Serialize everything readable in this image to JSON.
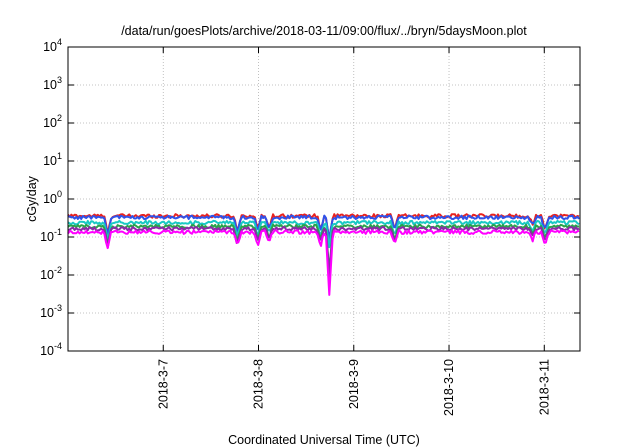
{
  "chart_data": {
    "type": "line",
    "title": "/data/run/goesPlots/archive/2018-03-11/09:00/flux/../bryn/5daysMoon.plot",
    "xlabel": "Coordinated Universal Time (UTC)",
    "ylabel": "cGy/day",
    "yscale": "log",
    "xlim": [
      "2018-03-06T00:00",
      "2018-03-11T09:00"
    ],
    "ylim": [
      0.0001,
      10000
    ],
    "grid": true,
    "x_ticks": [
      {
        "date": "2018-03-07T00:00",
        "label": "2018-3-7"
      },
      {
        "date": "2018-03-08T00:00",
        "label": "2018-3-8"
      },
      {
        "date": "2018-03-09T00:00",
        "label": "2018-3-9"
      },
      {
        "date": "2018-03-10T00:00",
        "label": "2018-3-10"
      },
      {
        "date": "2018-03-11T00:00",
        "label": "2018-3-11"
      }
    ],
    "y_ticks": [
      {
        "value": 0.0001,
        "base": "10",
        "exp": "-4"
      },
      {
        "value": 0.001,
        "base": "10",
        "exp": "-3"
      },
      {
        "value": 0.01,
        "base": "10",
        "exp": "-2"
      },
      {
        "value": 0.1,
        "base": "10",
        "exp": "-1"
      },
      {
        "value": 1,
        "base": "10",
        "exp": "0"
      },
      {
        "value": 10,
        "base": "10",
        "exp": "1"
      },
      {
        "value": 100,
        "base": "10",
        "exp": "2"
      },
      {
        "value": 1000,
        "base": "10",
        "exp": "3"
      },
      {
        "value": 10000,
        "base": "10",
        "exp": "4"
      }
    ],
    "series": [
      {
        "color": "#e8221f",
        "baseline": 0.36
      },
      {
        "color": "#2f52ea",
        "baseline": 0.33
      },
      {
        "color": "#19c9c4",
        "baseline": 0.24
      },
      {
        "color": "#2aa34a",
        "baseline": 0.19
      },
      {
        "color": "#8a2aa8",
        "baseline": 0.165
      },
      {
        "color": "#ff00ff",
        "baseline": 0.135
      }
    ],
    "dips": [
      {
        "date": "2018-03-06T10:00",
        "depth": 0.35
      },
      {
        "date": "2018-03-07T18:40",
        "depth": 0.4
      },
      {
        "date": "2018-03-07T23:50",
        "depth": 0.45
      },
      {
        "date": "2018-03-08T02:40",
        "depth": 0.5
      },
      {
        "date": "2018-03-08T15:40",
        "depth": 0.45
      },
      {
        "date": "2018-03-08T17:50",
        "depth": 0.02
      },
      {
        "date": "2018-03-09T10:20",
        "depth": 0.45
      },
      {
        "date": "2018-03-10T21:00",
        "depth": 0.6
      },
      {
        "date": "2018-03-11T00:10",
        "depth": 0.45
      }
    ]
  }
}
